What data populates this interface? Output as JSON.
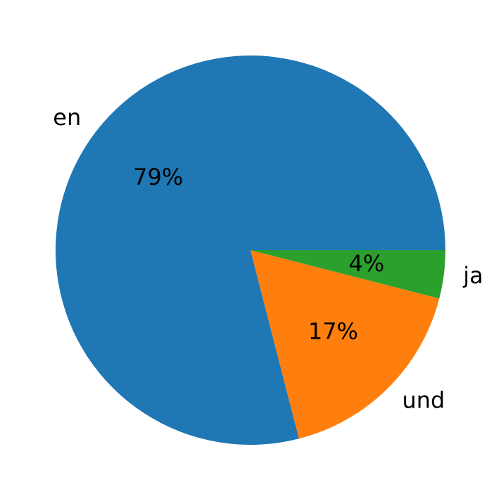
{
  "chart_data": {
    "type": "pie",
    "categories": [
      "en",
      "und",
      "ja"
    ],
    "values": [
      79,
      17,
      4
    ],
    "value_labels": [
      "79%",
      "17%",
      "4%"
    ],
    "colors": [
      "#1f77b4",
      "#ff7f0e",
      "#2ca02c"
    ]
  }
}
